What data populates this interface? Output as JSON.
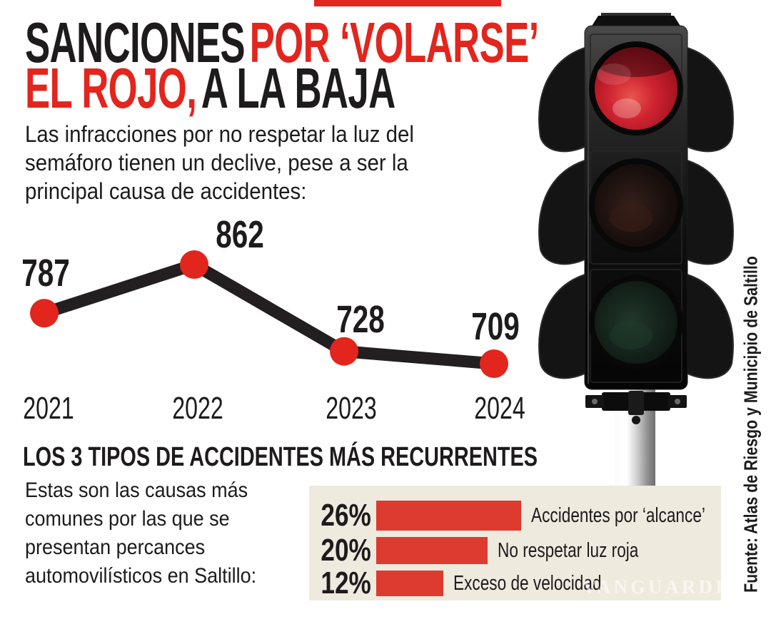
{
  "app": {
    "type": "news-infographic"
  },
  "header": {
    "title": {
      "seg1_black": "SANCIONES",
      "seg2_red": "POR ‘VOLARSE’",
      "seg3_red": "EL ROJO,",
      "seg4_black": "A LA BAJA"
    },
    "intro_lines": [
      "Las infracciones por no respetar la luz del",
      "semáforo tienen un declive, pese a ser la",
      "principal causa de accidentes:"
    ]
  },
  "section2": {
    "body_lines": [
      "Estas son las causas más",
      "comunes por las que se",
      "presentan percances",
      "automovilísticos en Saltillo:"
    ]
  },
  "source": {
    "text": "Fuente: Atlas de Riesgo y Municipio de Saltillo"
  },
  "watermark": "VANGUARDIA",
  "illustration": {
    "name": "traffic-light-photo",
    "state": "red-light-on",
    "lights": [
      "red-on",
      "middle-off-dark",
      "green-off-dark"
    ]
  },
  "colors": {
    "accent_red": "#e2251d",
    "bar_red": "#dd3a30",
    "panel_bg": "#efeade",
    "ink": "#1d1b1c",
    "line_black": "#231f20"
  },
  "chart_data": [
    {
      "type": "line",
      "x": [
        "2021",
        "2022",
        "2023",
        "2024"
      ],
      "values": [
        787,
        862,
        728,
        709
      ],
      "point_labels": [
        "787",
        "862",
        "728",
        "709"
      ],
      "marker": "red-circle",
      "line_style": "thick-black",
      "legend": "none",
      "grid": false
    },
    {
      "type": "bar",
      "orientation": "horizontal",
      "title": "LOS 3 TIPOS DE ACCIDENTES MÁS RECURRENTES",
      "categories": [
        "Accidentes por ‘alcance’",
        "No respetar luz roja",
        "Exceso de velocidad"
      ],
      "values": [
        26,
        20,
        12
      ],
      "display_values": [
        "26%",
        "20%",
        "12%"
      ],
      "unit": "%",
      "legend": "none",
      "xlim": [
        0,
        30
      ]
    }
  ]
}
